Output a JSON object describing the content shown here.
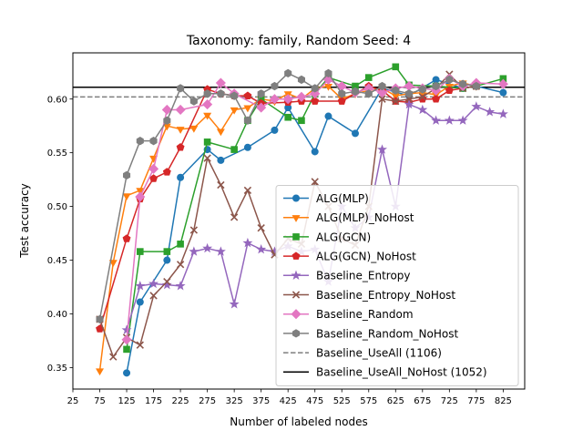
{
  "chart_data": {
    "type": "line",
    "title": "Taxonomy: family, Random Seed: 4",
    "xlabel": "Number of labeled nodes",
    "ylabel": "Test accuracy",
    "xlim": [
      25,
      865
    ],
    "ylim": [
      0.33,
      0.643
    ],
    "xticks": [
      25,
      75,
      125,
      175,
      225,
      275,
      325,
      375,
      425,
      475,
      525,
      575,
      625,
      675,
      725,
      775,
      825
    ],
    "xtick_labels": [
      "25",
      "75",
      "125",
      "175",
      "225",
      "275",
      "325",
      "375",
      "425",
      "475",
      "525",
      "575",
      "625",
      "675",
      "725",
      "775",
      "825"
    ],
    "yticks": [
      0.35,
      0.4,
      0.45,
      0.5,
      0.55,
      0.6
    ],
    "ytick_labels": [
      "0.35",
      "0.40",
      "0.45",
      "0.50",
      "0.55",
      "0.60"
    ],
    "grid": false,
    "legend_position": "lower-right",
    "series": [
      {
        "name": "ALG(MLP)",
        "color": "#1f77b4",
        "marker": "circle",
        "x": [
          125,
          150,
          200,
          225,
          275,
          300,
          350,
          400,
          425,
          475,
          500,
          550,
          600,
          650,
          700,
          750,
          775,
          825
        ],
        "y": [
          0.345,
          0.411,
          0.45,
          0.527,
          0.553,
          0.543,
          0.555,
          0.571,
          0.592,
          0.551,
          0.584,
          0.568,
          0.61,
          0.603,
          0.618,
          0.61,
          0.612,
          0.606
        ]
      },
      {
        "name": "ALG(MLP)_NoHost",
        "color": "#ff7f0e",
        "marker": "triangle-down",
        "x": [
          75,
          100,
          125,
          150,
          175,
          200,
          225,
          250,
          275,
          300,
          325,
          350,
          375,
          400,
          425,
          450,
          475,
          500,
          525,
          550,
          575,
          600,
          625,
          650,
          675,
          700,
          725,
          750,
          775
        ],
        "y": [
          0.347,
          0.448,
          0.51,
          0.515,
          0.545,
          0.575,
          0.572,
          0.573,
          0.585,
          0.57,
          0.59,
          0.592,
          0.6,
          0.598,
          0.605,
          0.6,
          0.61,
          0.612,
          0.6,
          0.605,
          0.608,
          0.61,
          0.603,
          0.605,
          0.606,
          0.604,
          0.612,
          0.615,
          0.612
        ]
      },
      {
        "name": "ALG(GCN)",
        "color": "#2ca02c",
        "marker": "square",
        "x": [
          125,
          150,
          200,
          225,
          275,
          325,
          350,
          375,
          425,
          450,
          475,
          500,
          550,
          575,
          625,
          650,
          700,
          750,
          775,
          825
        ],
        "y": [
          0.367,
          0.458,
          0.458,
          0.465,
          0.56,
          0.553,
          0.58,
          0.6,
          0.583,
          0.58,
          0.605,
          0.62,
          0.612,
          0.62,
          0.63,
          0.613,
          0.612,
          0.61,
          0.612,
          0.619
        ]
      },
      {
        "name": "ALG(GCN)_NoHost",
        "color": "#d62728",
        "marker": "pentagon",
        "x": [
          75,
          125,
          150,
          175,
          200,
          225,
          275,
          300,
          325,
          350,
          375,
          425,
          450,
          475,
          525,
          575,
          600,
          625,
          650,
          675,
          700,
          725,
          775
        ],
        "y": [
          0.386,
          0.47,
          0.507,
          0.526,
          0.532,
          0.555,
          0.609,
          0.605,
          0.603,
          0.603,
          0.596,
          0.597,
          0.598,
          0.598,
          0.598,
          0.612,
          0.608,
          0.598,
          0.597,
          0.6,
          0.6,
          0.608,
          0.612
        ]
      },
      {
        "name": "Baseline_Entropy",
        "color": "#9467bd",
        "marker": "star",
        "x": [
          125,
          150,
          175,
          200,
          225,
          250,
          275,
          300,
          325,
          350,
          375,
          400,
          425,
          450,
          475,
          500,
          525,
          550,
          575,
          600,
          625,
          650,
          675,
          700,
          725,
          750,
          775,
          800,
          825
        ],
        "y": [
          0.385,
          0.426,
          0.428,
          0.427,
          0.426,
          0.458,
          0.461,
          0.458,
          0.409,
          0.466,
          0.46,
          0.458,
          0.463,
          0.458,
          0.46,
          0.43,
          0.5,
          0.48,
          0.49,
          0.553,
          0.5,
          0.595,
          0.59,
          0.58,
          0.58,
          0.58,
          0.593,
          0.588,
          0.586
        ]
      },
      {
        "name": "Baseline_Entropy_NoHost",
        "color": "#8c564b",
        "marker": "x",
        "x": [
          75,
          100,
          125,
          150,
          175,
          200,
          225,
          250,
          275,
          300,
          325,
          350,
          375,
          400,
          425,
          450,
          475,
          500,
          525,
          550,
          575,
          600,
          625,
          650,
          675,
          700,
          725,
          750,
          775
        ],
        "y": [
          0.395,
          0.36,
          0.378,
          0.371,
          0.417,
          0.43,
          0.446,
          0.478,
          0.545,
          0.52,
          0.49,
          0.515,
          0.48,
          0.455,
          0.47,
          0.465,
          0.523,
          0.5,
          0.47,
          0.464,
          0.5,
          0.6,
          0.598,
          0.6,
          0.602,
          0.61,
          0.623,
          0.61,
          0.612
        ]
      },
      {
        "name": "Baseline_Random",
        "color": "#e377c2",
        "marker": "diamond",
        "x": [
          125,
          150,
          175,
          200,
          225,
          275,
          300,
          325,
          375,
          400,
          425,
          450,
          475,
          500,
          525,
          550,
          575,
          600,
          625,
          650,
          675,
          700,
          725,
          750,
          775,
          825
        ],
        "y": [
          0.376,
          0.509,
          0.535,
          0.59,
          0.59,
          0.595,
          0.615,
          0.605,
          0.592,
          0.6,
          0.6,
          0.602,
          0.605,
          0.618,
          0.612,
          0.606,
          0.61,
          0.606,
          0.61,
          0.612,
          0.61,
          0.608,
          0.619,
          0.612,
          0.615,
          0.614
        ]
      },
      {
        "name": "Baseline_Random_NoHost",
        "color": "#7f7f7f",
        "marker": "hexagon",
        "x": [
          75,
          125,
          150,
          175,
          200,
          225,
          250,
          275,
          300,
          325,
          350,
          375,
          400,
          425,
          450,
          475,
          500,
          525,
          550,
          575,
          600,
          625,
          650,
          675,
          700,
          725,
          750,
          775
        ],
        "y": [
          0.395,
          0.529,
          0.561,
          0.561,
          0.58,
          0.61,
          0.598,
          0.605,
          0.605,
          0.603,
          0.58,
          0.605,
          0.612,
          0.624,
          0.618,
          0.61,
          0.624,
          0.605,
          0.607,
          0.605,
          0.612,
          0.608,
          0.605,
          0.609,
          0.612,
          0.618,
          0.614,
          0.612
        ]
      }
    ],
    "hlines": [
      {
        "name": "Baseline_UseAll (1106)",
        "y": 0.602,
        "color": "#7f7f7f",
        "style": "dashed"
      },
      {
        "name": "Baseline_UseAll_NoHost (1052)",
        "y": 0.611,
        "color": "#000000",
        "style": "solid"
      }
    ]
  }
}
